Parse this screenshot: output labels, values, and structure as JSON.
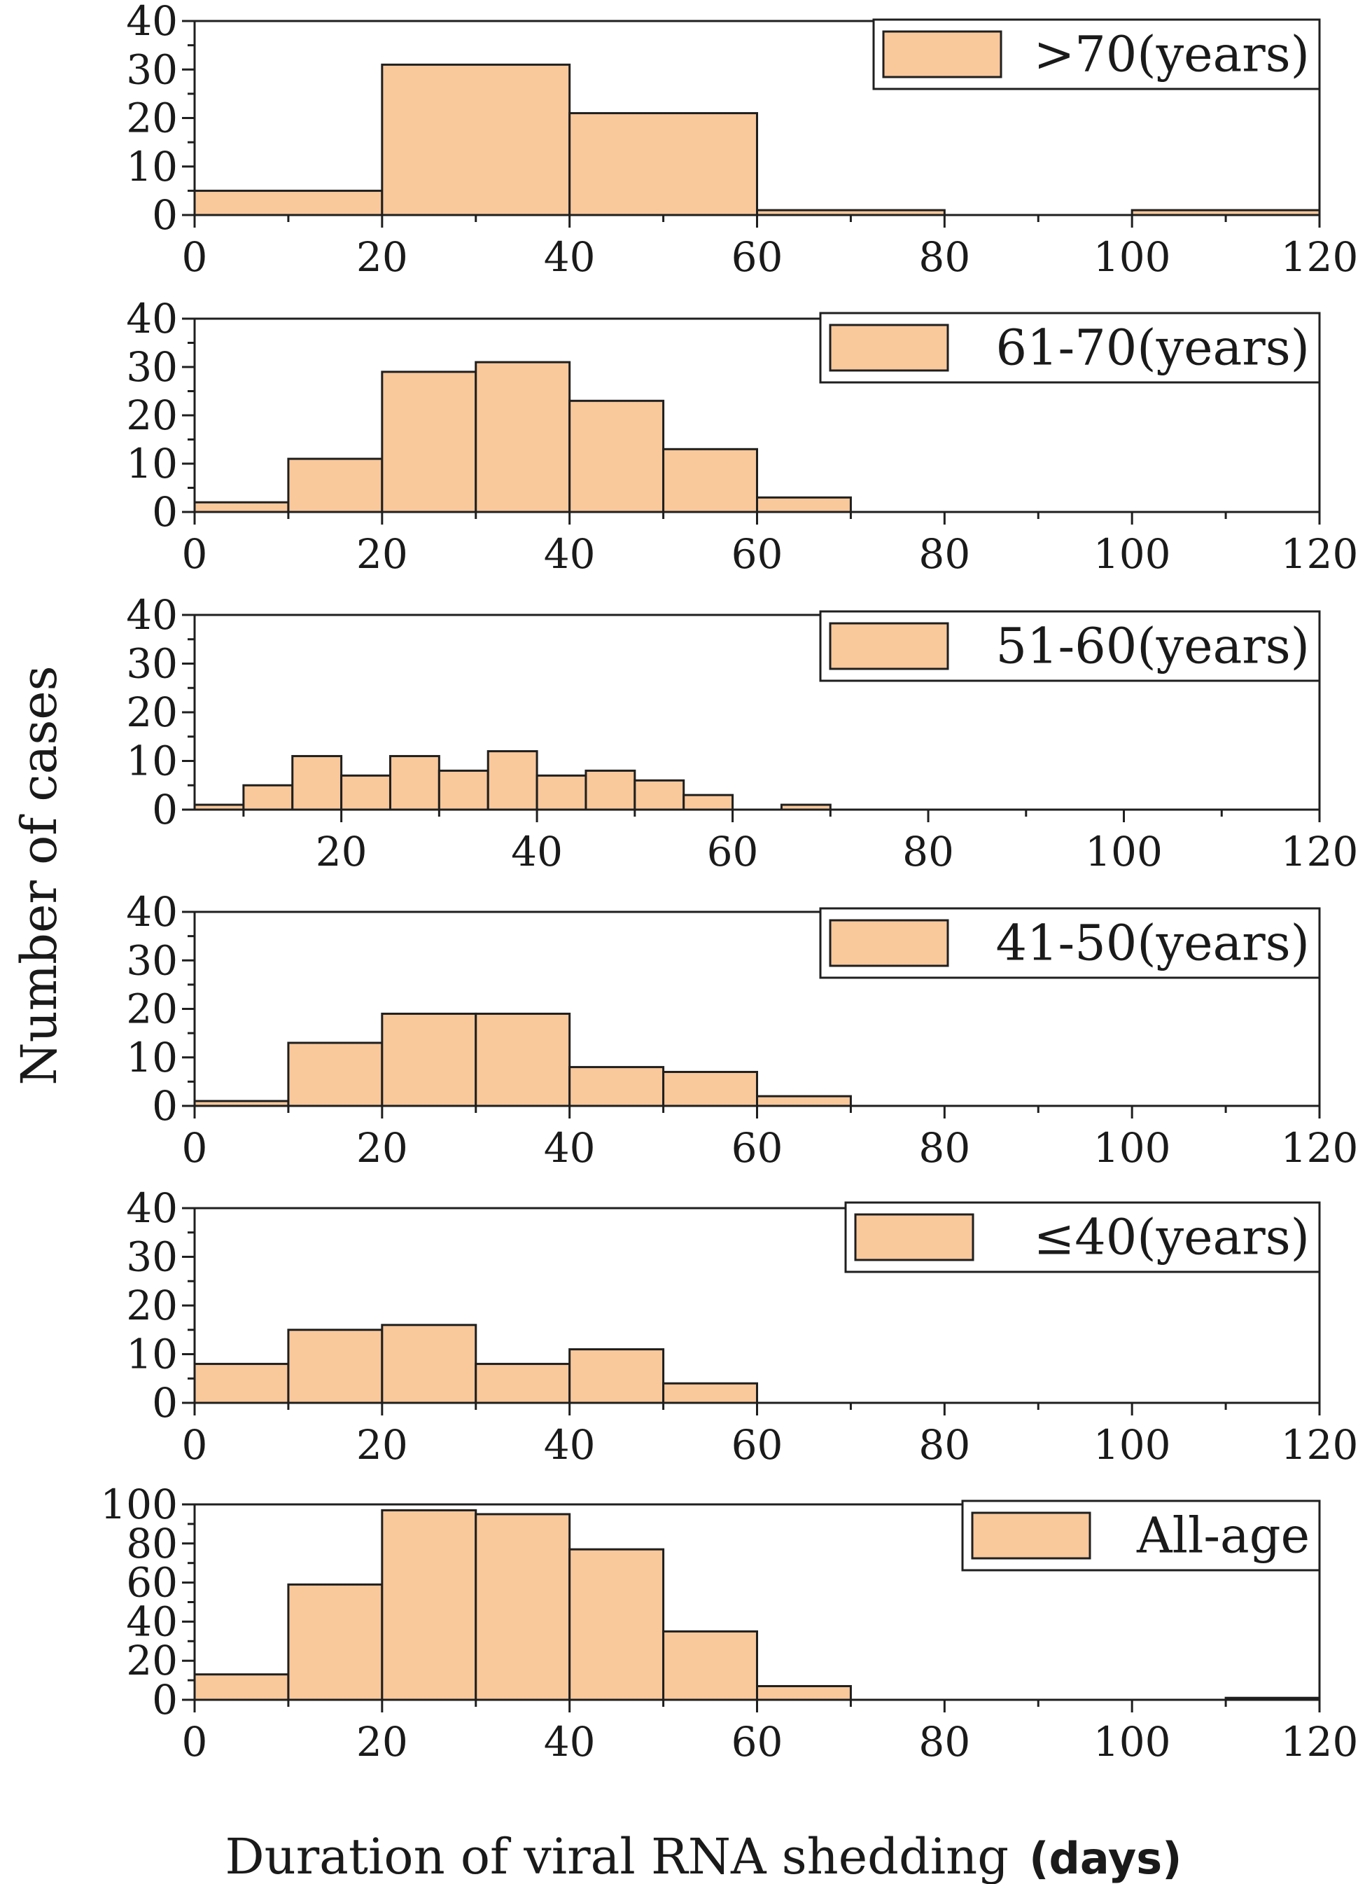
{
  "y_title": "Number of cases",
  "x_title": "Duration of viral RNA shedding",
  "x_unit": "(days)",
  "colors": {
    "bar_fill": "#f9c89b",
    "bar_stroke": "#1f1f1f",
    "axis": "#1f1f1f",
    "background": "#ffffff"
  },
  "chart_data": [
    {
      "type": "bar",
      "legend": ">70(years)",
      "bins": [
        [
          0,
          20
        ],
        [
          20,
          40
        ],
        [
          40,
          60
        ],
        [
          60,
          80
        ],
        [
          100,
          120
        ]
      ],
      "values": [
        5,
        31,
        21,
        1,
        1
      ],
      "xlim": [
        0,
        120
      ],
      "ylim": [
        0,
        40
      ],
      "xticks": [
        0,
        20,
        40,
        60,
        80,
        100,
        120
      ],
      "yticks": [
        0,
        10,
        20,
        30,
        40
      ],
      "ylabel": "Number of cases",
      "xlabel": "",
      "legend_position": "top-right",
      "grid": false
    },
    {
      "type": "bar",
      "legend": "61-70(years)",
      "bins": [
        [
          0,
          10
        ],
        [
          10,
          20
        ],
        [
          20,
          30
        ],
        [
          30,
          40
        ],
        [
          40,
          50
        ],
        [
          50,
          60
        ],
        [
          60,
          70
        ]
      ],
      "values": [
        2,
        11,
        29,
        31,
        23,
        13,
        3
      ],
      "xlim": [
        0,
        120
      ],
      "ylim": [
        0,
        40
      ],
      "xticks": [
        0,
        20,
        40,
        60,
        80,
        100,
        120
      ],
      "yticks": [
        0,
        10,
        20,
        30,
        40
      ],
      "ylabel": "Number of cases",
      "xlabel": "",
      "legend_position": "top-right",
      "grid": false
    },
    {
      "type": "bar",
      "legend": "51-60(years)",
      "bins": [
        [
          5,
          10
        ],
        [
          10,
          15
        ],
        [
          15,
          20
        ],
        [
          20,
          25
        ],
        [
          25,
          30
        ],
        [
          30,
          35
        ],
        [
          35,
          40
        ],
        [
          40,
          45
        ],
        [
          45,
          50
        ],
        [
          50,
          55
        ],
        [
          55,
          60
        ],
        [
          65,
          70
        ]
      ],
      "values": [
        1,
        5,
        11,
        7,
        11,
        8,
        12,
        7,
        8,
        6,
        3,
        1
      ],
      "xlim": [
        5,
        120
      ],
      "ylim": [
        0,
        40
      ],
      "xticks": [
        20,
        40,
        60,
        80,
        100,
        120
      ],
      "yticks": [
        0,
        10,
        20,
        30,
        40
      ],
      "ylabel": "Number of cases",
      "xlabel": "",
      "legend_position": "top-right",
      "grid": false
    },
    {
      "type": "bar",
      "legend": "41-50(years)",
      "bins": [
        [
          0,
          10
        ],
        [
          10,
          20
        ],
        [
          20,
          30
        ],
        [
          30,
          40
        ],
        [
          40,
          50
        ],
        [
          50,
          60
        ],
        [
          60,
          70
        ]
      ],
      "values": [
        1,
        13,
        19,
        19,
        8,
        7,
        2
      ],
      "xlim": [
        0,
        120
      ],
      "ylim": [
        0,
        40
      ],
      "xticks": [
        0,
        20,
        40,
        60,
        80,
        100,
        120
      ],
      "yticks": [
        0,
        10,
        20,
        30,
        40
      ],
      "ylabel": "Number of cases",
      "xlabel": "",
      "legend_position": "top-right",
      "grid": false
    },
    {
      "type": "bar",
      "legend": "≤40(years)",
      "bins": [
        [
          0,
          10
        ],
        [
          10,
          20
        ],
        [
          20,
          30
        ],
        [
          30,
          40
        ],
        [
          40,
          50
        ],
        [
          50,
          60
        ]
      ],
      "values": [
        8,
        15,
        16,
        8,
        11,
        4
      ],
      "xlim": [
        0,
        120
      ],
      "ylim": [
        0,
        40
      ],
      "xticks": [
        0,
        20,
        40,
        60,
        80,
        100,
        120
      ],
      "yticks": [
        0,
        10,
        20,
        30,
        40
      ],
      "ylabel": "Number of cases",
      "xlabel": "",
      "legend_position": "top-right",
      "grid": false
    },
    {
      "type": "bar",
      "legend": "All-age",
      "bins": [
        [
          0,
          10
        ],
        [
          10,
          20
        ],
        [
          20,
          30
        ],
        [
          30,
          40
        ],
        [
          40,
          50
        ],
        [
          50,
          60
        ],
        [
          60,
          70
        ],
        [
          110,
          120
        ]
      ],
      "values": [
        13,
        59,
        97,
        95,
        77,
        35,
        7,
        1
      ],
      "xlim": [
        0,
        120
      ],
      "ylim": [
        0,
        100
      ],
      "xticks": [
        0,
        20,
        40,
        60,
        80,
        100,
        120
      ],
      "yticks": [
        0,
        20,
        40,
        60,
        80,
        100
      ],
      "ylabel": "Number of cases",
      "xlabel": "Duration of viral RNA shedding (days)",
      "legend_position": "top-right",
      "grid": false
    }
  ]
}
